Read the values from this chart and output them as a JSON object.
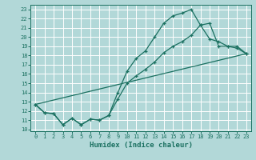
{
  "xlabel": "Humidex (Indice chaleur)",
  "bg_color": "#b2d8d8",
  "grid_color": "#ffffff",
  "line_color": "#1a7060",
  "xlim": [
    -0.5,
    23.5
  ],
  "ylim": [
    9.8,
    23.5
  ],
  "xticks": [
    0,
    1,
    2,
    3,
    4,
    5,
    6,
    7,
    8,
    9,
    10,
    11,
    12,
    13,
    14,
    15,
    16,
    17,
    18,
    19,
    20,
    21,
    22,
    23
  ],
  "yticks": [
    10,
    11,
    12,
    13,
    14,
    15,
    16,
    17,
    18,
    19,
    20,
    21,
    22,
    23
  ],
  "line1_x": [
    0,
    1,
    2,
    3,
    4,
    5,
    6,
    7,
    8,
    9,
    10,
    11,
    12,
    13,
    14,
    15,
    16,
    17,
    18,
    19,
    20,
    21,
    22,
    23
  ],
  "line1_y": [
    12.7,
    11.8,
    11.7,
    10.5,
    11.2,
    10.5,
    11.1,
    11.0,
    11.5,
    14.0,
    16.3,
    17.7,
    18.5,
    20.0,
    21.5,
    22.3,
    22.6,
    23.0,
    21.3,
    21.5,
    19.0,
    19.0,
    18.8,
    18.2
  ],
  "line2_x": [
    0,
    1,
    2,
    3,
    4,
    5,
    6,
    7,
    8,
    9,
    10,
    11,
    12,
    13,
    14,
    15,
    16,
    17,
    18,
    19,
    20,
    21,
    22,
    23
  ],
  "line2_y": [
    12.7,
    11.8,
    11.7,
    10.5,
    11.2,
    10.5,
    11.1,
    11.0,
    11.5,
    13.3,
    15.0,
    15.8,
    16.5,
    17.3,
    18.3,
    19.0,
    19.5,
    20.2,
    21.3,
    19.8,
    19.5,
    19.0,
    19.0,
    18.2
  ],
  "line3_x": [
    0,
    23
  ],
  "line3_y": [
    12.7,
    18.2
  ]
}
